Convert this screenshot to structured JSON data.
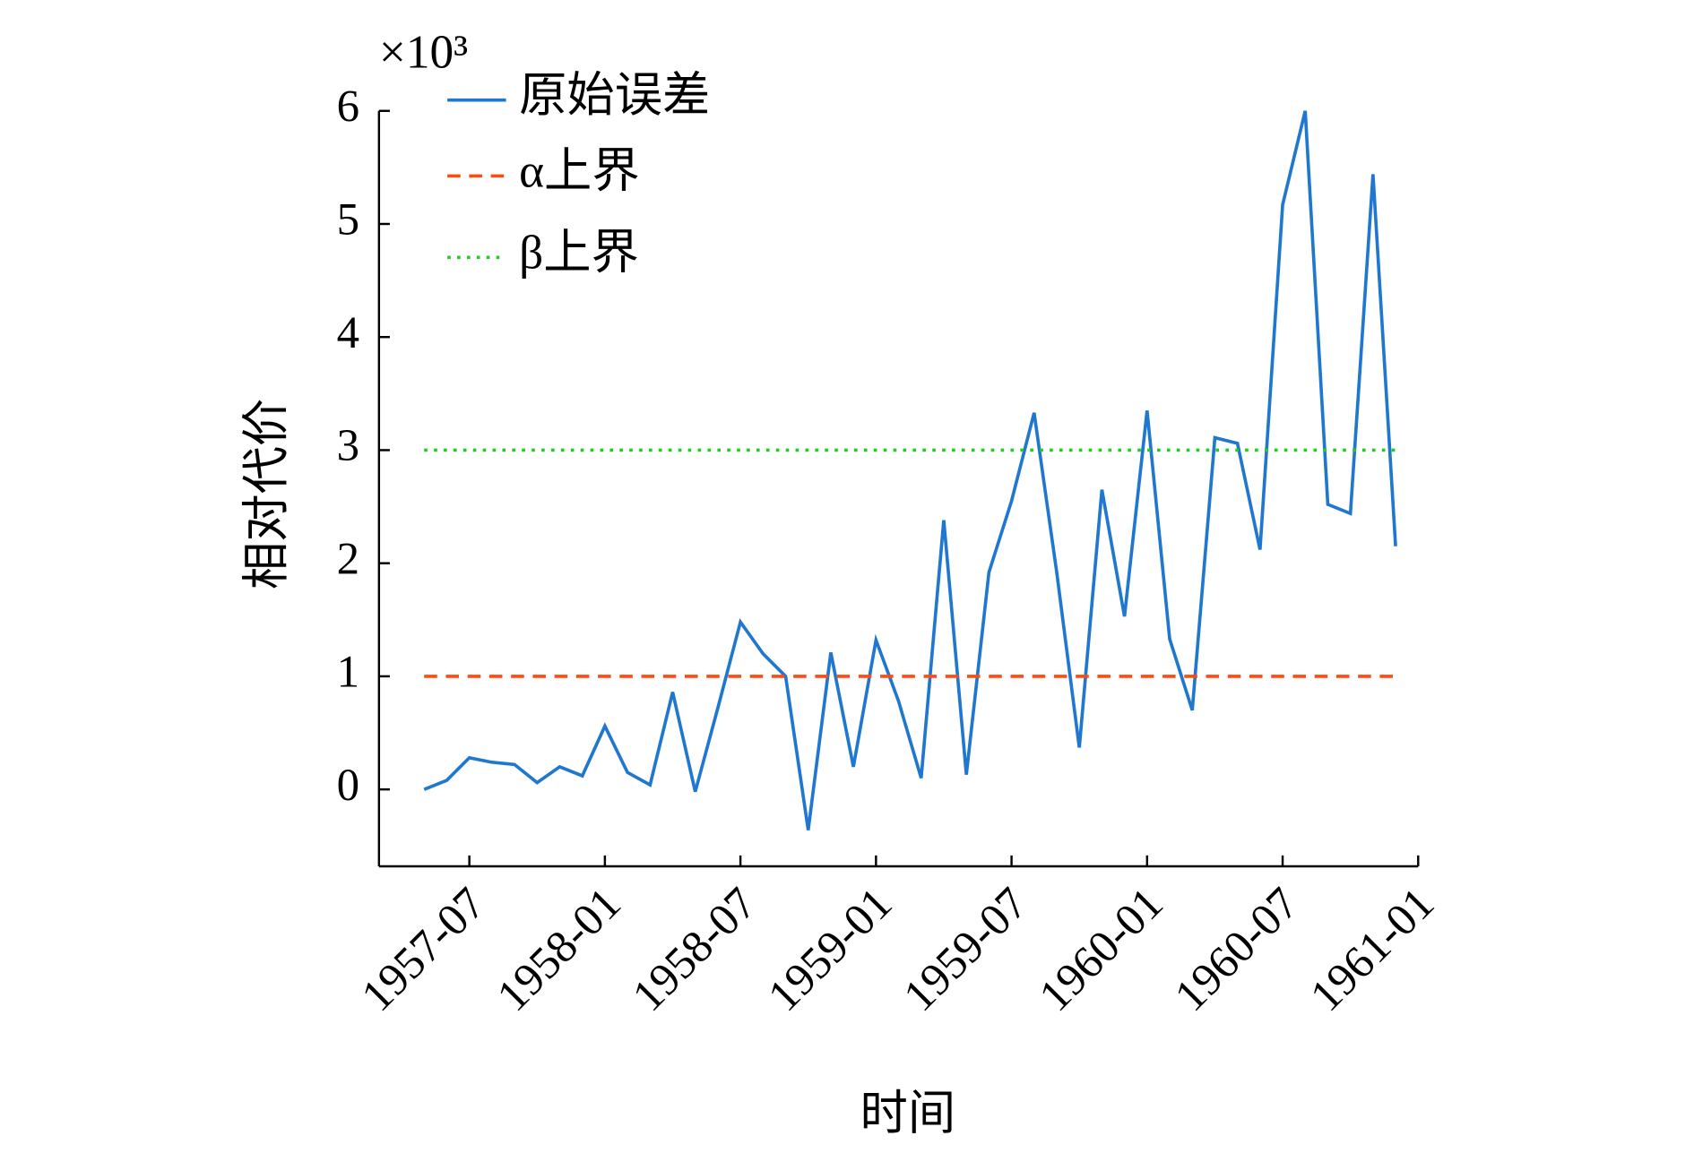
{
  "chart_data": {
    "type": "line",
    "y_label": "相对代价",
    "x_label": "时间",
    "y_multiplier": "×10³",
    "x": [
      "1957-05",
      "1957-06",
      "1957-07",
      "1957-08",
      "1957-09",
      "1957-10",
      "1957-11",
      "1957-12",
      "1958-01",
      "1958-02",
      "1958-03",
      "1958-04",
      "1958-05",
      "1958-06",
      "1958-07",
      "1958-08",
      "1958-09",
      "1958-10",
      "1958-11",
      "1958-12",
      "1959-01",
      "1959-02",
      "1959-03",
      "1959-04",
      "1959-05",
      "1959-06",
      "1959-07",
      "1959-08",
      "1959-09",
      "1959-10",
      "1959-11",
      "1959-12",
      "1960-01",
      "1960-02",
      "1960-03",
      "1960-04",
      "1960-05",
      "1960-06",
      "1960-07",
      "1960-08",
      "1960-09",
      "1960-10",
      "1960-11",
      "1960-12"
    ],
    "series": [
      {
        "name": "原始误差",
        "color": "#1f77d0",
        "dash": "solid",
        "values": [
          0.0,
          0.08,
          0.28,
          0.24,
          0.22,
          0.06,
          0.2,
          0.12,
          0.56,
          0.15,
          0.04,
          0.86,
          -0.02,
          0.72,
          1.48,
          1.2,
          1.0,
          -0.36,
          1.21,
          0.2,
          1.32,
          0.78,
          0.1,
          2.38,
          0.13,
          1.92,
          2.55,
          3.33,
          1.92,
          0.37,
          2.65,
          1.53,
          3.35,
          1.33,
          0.7,
          3.11,
          3.06,
          2.12,
          5.17,
          6.0,
          2.52,
          2.44,
          5.44,
          2.15
        ]
      },
      {
        "name": "α上界",
        "color": "#ff4a10",
        "dash": "dashed",
        "values": [
          1,
          1,
          1,
          1,
          1,
          1,
          1,
          1,
          1,
          1,
          1,
          1,
          1,
          1,
          1,
          1,
          1,
          1,
          1,
          1,
          1,
          1,
          1,
          1,
          1,
          1,
          1,
          1,
          1,
          1,
          1,
          1,
          1,
          1,
          1,
          1,
          1,
          1,
          1,
          1,
          1,
          1,
          1,
          1
        ]
      },
      {
        "name": "β上界",
        "color": "#22cc22",
        "dash": "dotted",
        "values": [
          3,
          3,
          3,
          3,
          3,
          3,
          3,
          3,
          3,
          3,
          3,
          3,
          3,
          3,
          3,
          3,
          3,
          3,
          3,
          3,
          3,
          3,
          3,
          3,
          3,
          3,
          3,
          3,
          3,
          3,
          3,
          3,
          3,
          3,
          3,
          3,
          3,
          3,
          3,
          3,
          3,
          3,
          3,
          3
        ]
      }
    ],
    "xlim": [
      "1957-03",
      "1961-01"
    ],
    "xticks": [
      "1957-07",
      "1958-01",
      "1958-07",
      "1959-01",
      "1959-07",
      "1960-01",
      "1960-07",
      "1961-01"
    ],
    "ylim": [
      -0.68,
      6
    ],
    "yticks": [
      0,
      1,
      2,
      3,
      4,
      5,
      6
    ],
    "legend": "upper-left",
    "grid": false
  }
}
